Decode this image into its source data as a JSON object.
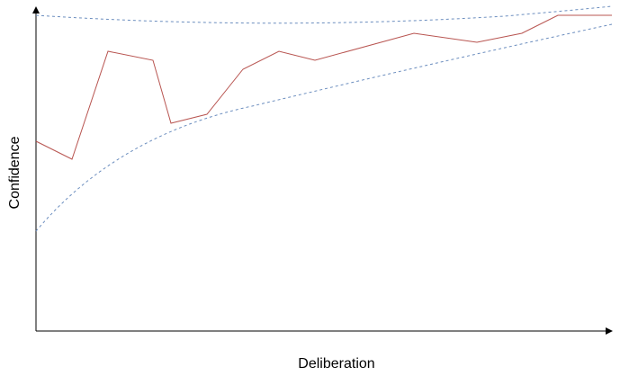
{
  "axes": {
    "x_label": "Deliberation",
    "y_label": "Confidence"
  }
}
